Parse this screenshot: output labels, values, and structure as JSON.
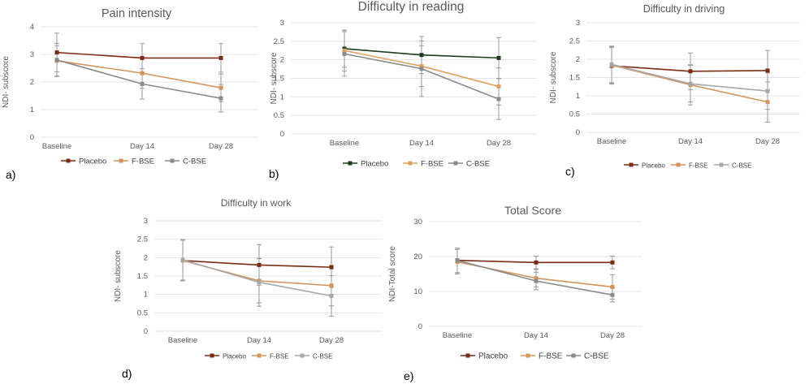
{
  "chart_data": [
    {
      "id": "a",
      "panel_label": "a)",
      "type": "line",
      "title": "Pain intensity",
      "ylabel": "NDI- subscore",
      "xlabel": "",
      "categories": [
        "Baseline",
        "Day 14",
        "Day 28"
      ],
      "ylim": [
        0,
        4
      ],
      "yticks": [
        "0",
        "1",
        "2",
        "3",
        "4"
      ],
      "grid": true,
      "legend_position": "bottom",
      "series": [
        {
          "name": "Placebo",
          "values": [
            3.07,
            2.87,
            2.87
          ],
          "error": [
            0.7,
            0.52,
            0.52
          ],
          "color": "#7b2c14"
        },
        {
          "name": "F-BSE",
          "values": [
            2.77,
            2.32,
            1.79
          ],
          "error": [
            0.55,
            0.55,
            0.5
          ],
          "color": "#d4935b"
        },
        {
          "name": "C-BSE",
          "values": [
            2.8,
            1.93,
            1.41
          ],
          "error": [
            0.6,
            0.55,
            0.5
          ],
          "color": "#8a8a8a"
        }
      ]
    },
    {
      "id": "b",
      "panel_label": "b)",
      "type": "line",
      "title": "Difficulty in reading",
      "ylabel": "NDI- subscore",
      "xlabel": "",
      "categories": [
        "Baseline",
        "Day 14",
        "Day 28"
      ],
      "ylim": [
        0,
        3
      ],
      "yticks": [
        "0",
        "0.5",
        "1",
        "1.5",
        "2",
        "2.5",
        "3"
      ],
      "grid": true,
      "legend_position": "bottom",
      "series": [
        {
          "name": "Placebo",
          "values": [
            2.3,
            2.13,
            2.05
          ],
          "error": [
            0.5,
            0.5,
            0.55
          ],
          "color": "#1d3a1d"
        },
        {
          "name": "F-BSE",
          "values": [
            2.25,
            1.83,
            1.28
          ],
          "error": [
            0.55,
            0.55,
            0.5
          ],
          "color": "#e0a060"
        },
        {
          "name": "C-BSE",
          "values": [
            2.16,
            1.76,
            0.94
          ],
          "error": [
            0.6,
            0.75,
            0.55
          ],
          "color": "#8a8a8a"
        }
      ]
    },
    {
      "id": "c",
      "panel_label": "c)",
      "type": "line",
      "title": "Difficulty in driving",
      "ylabel": "NDI- subscore",
      "xlabel": "",
      "categories": [
        "Baseline",
        "Day 14",
        "Day 28"
      ],
      "ylim": [
        0,
        3
      ],
      "yticks": [
        "0",
        "0.5",
        "1",
        "1.5",
        "2",
        "2.5",
        "3"
      ],
      "grid": true,
      "legend_position": "bottom",
      "series": [
        {
          "name": "Placebo",
          "values": [
            1.82,
            1.67,
            1.69
          ],
          "error": [
            0.5,
            0.5,
            0.55
          ],
          "color": "#7b2c14"
        },
        {
          "name": "F-BSE",
          "values": [
            1.84,
            1.3,
            0.83
          ],
          "error": [
            0.5,
            0.55,
            0.55
          ],
          "color": "#d4935b"
        },
        {
          "name": "C-BSE",
          "values": [
            1.86,
            1.33,
            1.13
          ],
          "error": [
            0.5,
            0.5,
            0.5
          ],
          "color": "#a8a8a8"
        }
      ]
    },
    {
      "id": "d",
      "panel_label": "d)",
      "type": "line",
      "title": "Difficulty in work",
      "ylabel": "NDI- subscore",
      "xlabel": "",
      "categories": [
        "Baseline",
        "Day 14",
        "Day 28"
      ],
      "ylim": [
        0,
        3
      ],
      "yticks": [
        "0",
        "0.5",
        "1",
        "1.5",
        "2",
        "2.5",
        "3"
      ],
      "grid": true,
      "legend_position": "bottom",
      "series": [
        {
          "name": "Placebo",
          "values": [
            1.92,
            1.8,
            1.74
          ],
          "error": [
            0.55,
            0.55,
            0.55
          ],
          "color": "#7b2c14"
        },
        {
          "name": "F-BSE",
          "values": [
            1.92,
            1.37,
            1.24
          ],
          "error": [
            0.55,
            0.6,
            0.55
          ],
          "color": "#d4935b"
        },
        {
          "name": "C-BSE",
          "values": [
            1.94,
            1.33,
            0.96
          ],
          "error": [
            0.55,
            0.65,
            0.55
          ],
          "color": "#a8a8a8"
        }
      ]
    },
    {
      "id": "e",
      "panel_label": "e)",
      "type": "line",
      "title": "Total Score",
      "ylabel": "NDI-Total score",
      "xlabel": "",
      "categories": [
        "Baseline",
        "Day 14",
        "Day 28"
      ],
      "ylim": [
        0,
        30
      ],
      "yticks": [
        "0",
        "10",
        "20",
        "30"
      ],
      "grid": true,
      "legend_position": "bottom",
      "series": [
        {
          "name": "Placebo",
          "values": [
            18.9,
            18.3,
            18.3
          ],
          "error": [
            3.5,
            1.8,
            1.8
          ],
          "color": "#7b2c14"
        },
        {
          "name": "F-BSE",
          "values": [
            18.5,
            13.8,
            11.3
          ],
          "error": [
            3.5,
            2.5,
            3.5
          ],
          "color": "#d4935b"
        },
        {
          "name": "C-BSE",
          "values": [
            18.9,
            13.0,
            9.0
          ],
          "error": [
            3.5,
            2.5,
            2.0
          ],
          "color": "#8a8a8a"
        }
      ]
    }
  ]
}
